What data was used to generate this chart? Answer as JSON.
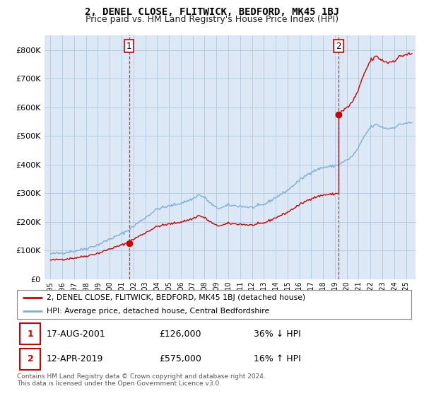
{
  "title": "2, DENEL CLOSE, FLITWICK, BEDFORD, MK45 1BJ",
  "subtitle": "Price paid vs. HM Land Registry's House Price Index (HPI)",
  "title_fontsize": 10,
  "subtitle_fontsize": 9,
  "sale1_date": "17-AUG-2001",
  "sale1_price": 126000,
  "sale1_label": "36% ↓ HPI",
  "sale2_date": "12-APR-2019",
  "sale2_price": 575000,
  "sale2_label": "16% ↑ HPI",
  "legend_label1": "2, DENEL CLOSE, FLITWICK, BEDFORD, MK45 1BJ (detached house)",
  "legend_label2": "HPI: Average price, detached house, Central Bedfordshire",
  "footer": "Contains HM Land Registry data © Crown copyright and database right 2024.\nThis data is licensed under the Open Government Licence v3.0.",
  "sale_color": "#cc0000",
  "hpi_color": "#7fafd4",
  "plot_bg": "#dce8f5",
  "background": "#ffffff",
  "grid_color": "#b0c8e0",
  "ylim": [
    0,
    850000
  ],
  "yticks": [
    0,
    100000,
    200000,
    300000,
    400000,
    500000,
    600000,
    700000,
    800000
  ],
  "sale1_year": 2001.625,
  "sale2_year": 2019.29
}
